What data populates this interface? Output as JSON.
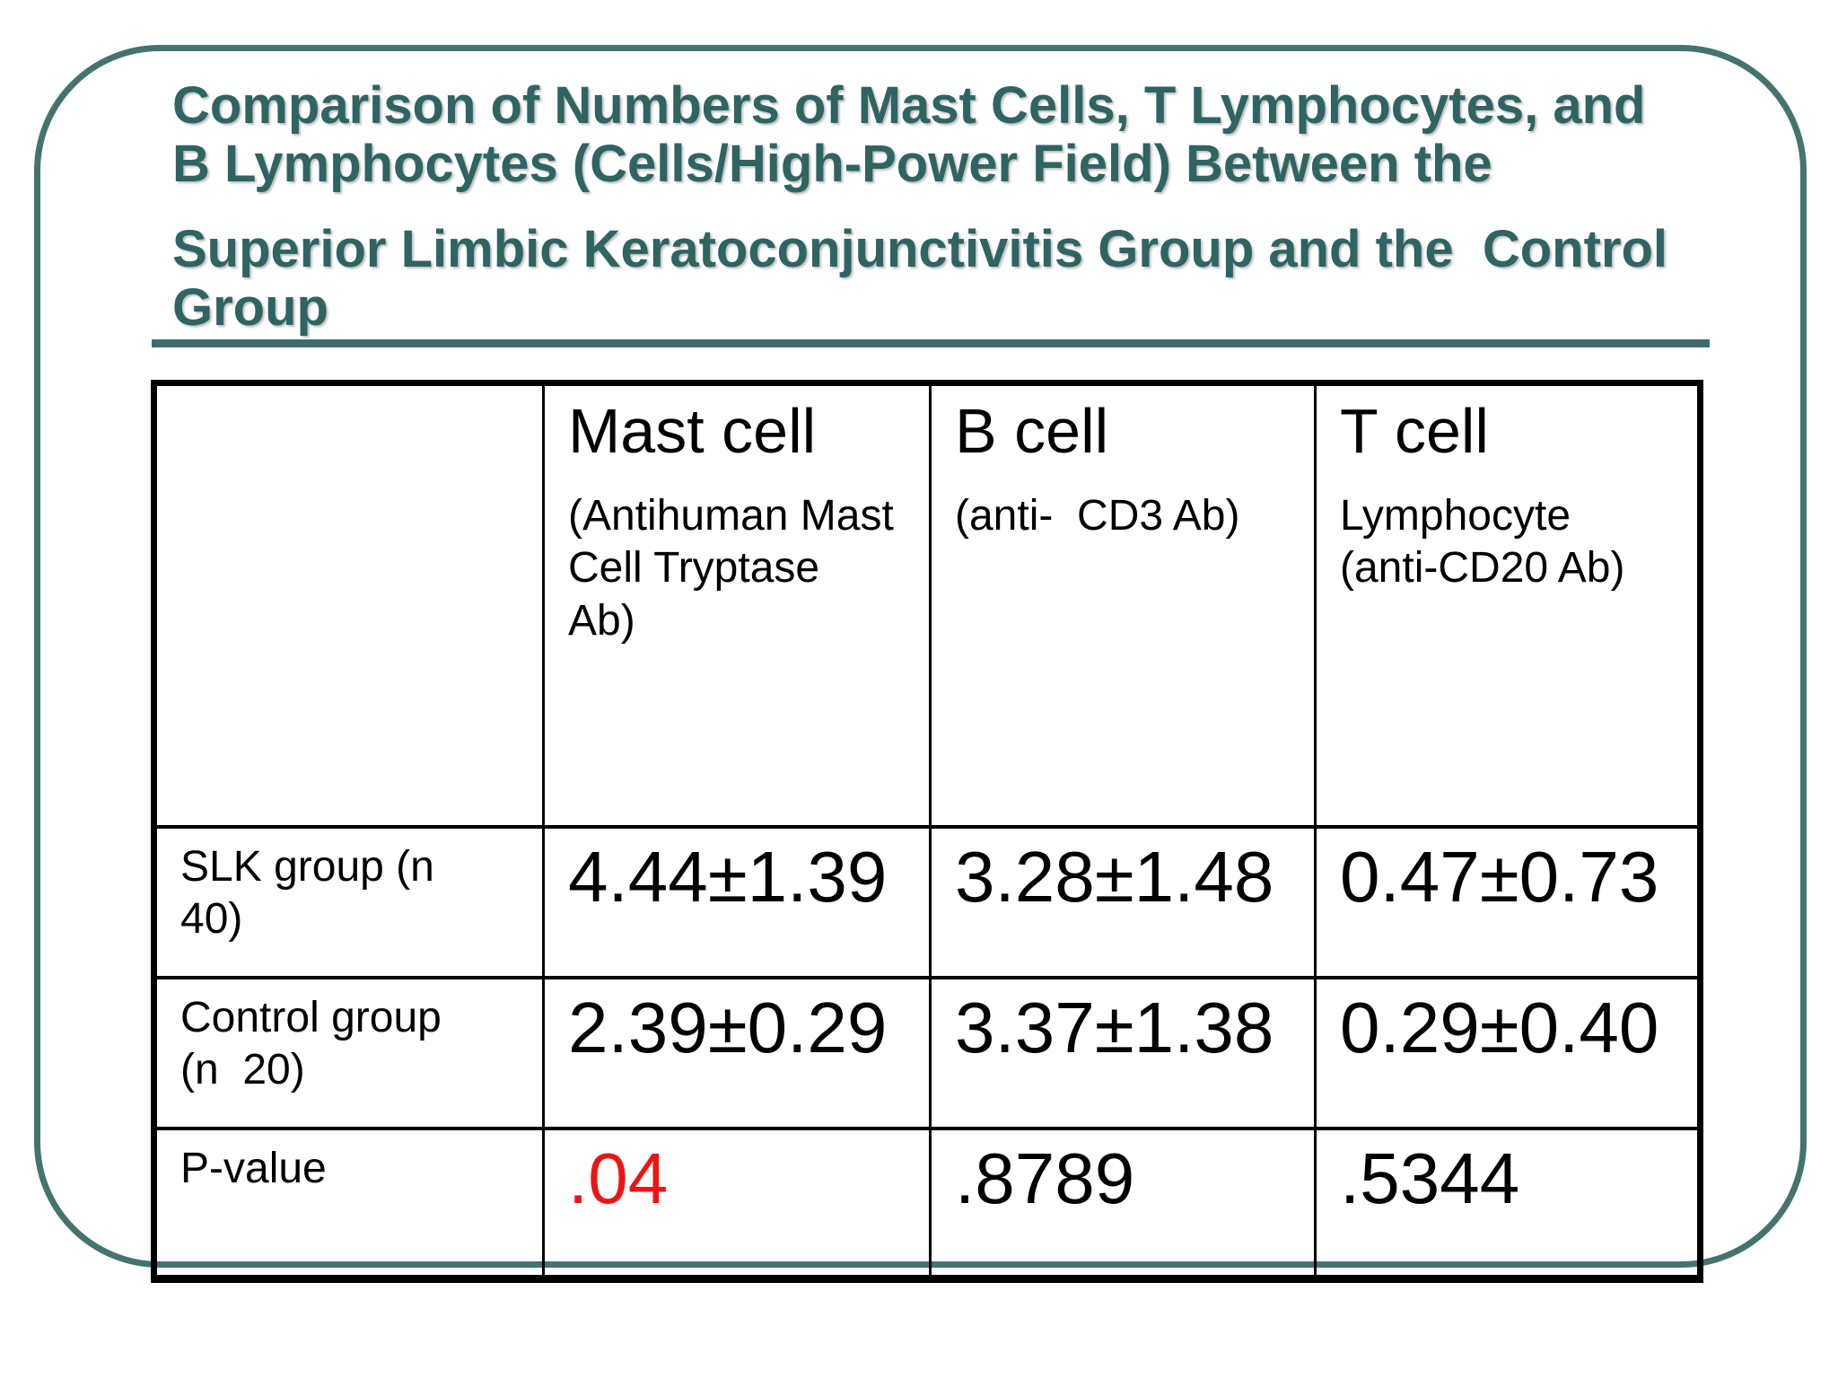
{
  "slide": {
    "title": {
      "paragraph1": "Comparison of Numbers of Mast Cells, T Lymphocytes, and\nB Lymphocytes (Cells/High-Power Field) Between the",
      "paragraph2": "Superior Limbic Keratoconjunctivitis Group and the  Control\nGroup"
    },
    "colors": {
      "title_teal": "#2E6462",
      "frame_teal": "#45736E",
      "rule_teal": "#3C6E69",
      "table_border_black": "#000000",
      "highlight_red": "#EE1414"
    }
  },
  "table": {
    "header": {
      "corner_label": "",
      "columns": [
        {
          "title": "Mast cell",
          "subtitle": "(Antihuman Mast\nCell Tryptase\nAb)"
        },
        {
          "title": "B cell",
          "subtitle": "(anti-  CD3 Ab)"
        },
        {
          "title": "T cell",
          "subtitle": "Lymphocyte\n(anti-CD20 Ab)"
        }
      ]
    },
    "rows": [
      {
        "label": "SLK group (n\n40)",
        "values": [
          "4.44±1.39",
          "3.28±1.48",
          "0.47±0.73"
        ]
      },
      {
        "label": "Control group\n(n  20)",
        "values": [
          "2.39±0.29",
          "3.37±1.38",
          "0.29±0.40"
        ]
      },
      {
        "label": "P-value",
        "values": [
          ".04",
          ".8789",
          ".5344"
        ]
      }
    ]
  }
}
